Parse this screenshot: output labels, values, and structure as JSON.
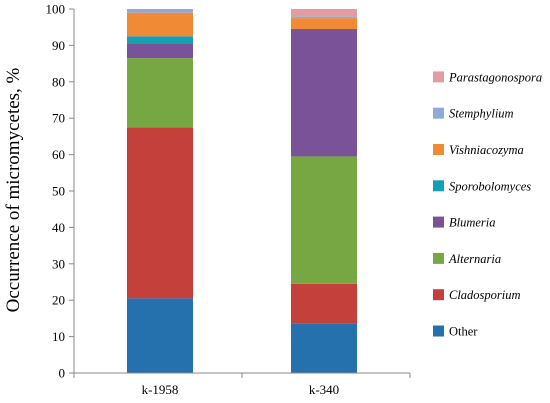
{
  "chart_data": {
    "type": "bar",
    "stacked": true,
    "categories": [
      "k-1958",
      "k-340"
    ],
    "ylabel": "Occurrence of micromycetes, %",
    "xlabel": "",
    "ylim": [
      0,
      100
    ],
    "yticks": [
      0,
      10,
      20,
      30,
      40,
      50,
      60,
      70,
      80,
      90,
      100
    ],
    "grid": false,
    "legend_position": "right",
    "series": [
      {
        "name": "Other",
        "italic": false,
        "color": "#2471AE",
        "values": [
          20.5,
          13.5
        ]
      },
      {
        "name": "Cladosporium",
        "italic": true,
        "color": "#C3413A",
        "values": [
          47.0,
          11.0
        ]
      },
      {
        "name": "Alternaria",
        "italic": true,
        "color": "#77A743",
        "values": [
          19.0,
          35.0
        ]
      },
      {
        "name": "Blumeria",
        "italic": true,
        "color": "#7A5297",
        "values": [
          4.0,
          35.0
        ]
      },
      {
        "name": "Sporobolomyces",
        "italic": true,
        "color": "#13A0B3",
        "values": [
          2.0,
          0.0
        ]
      },
      {
        "name": "Vishniacozyma",
        "italic": true,
        "color": "#F08A35",
        "values": [
          6.5,
          3.0
        ]
      },
      {
        "name": "Stemphylium",
        "italic": true,
        "color": "#8FAADA",
        "values": [
          1.0,
          0.5
        ]
      },
      {
        "name": "Parastagonospora",
        "italic": true,
        "color": "#E59CA0",
        "values": [
          0.0,
          2.0
        ]
      }
    ]
  }
}
